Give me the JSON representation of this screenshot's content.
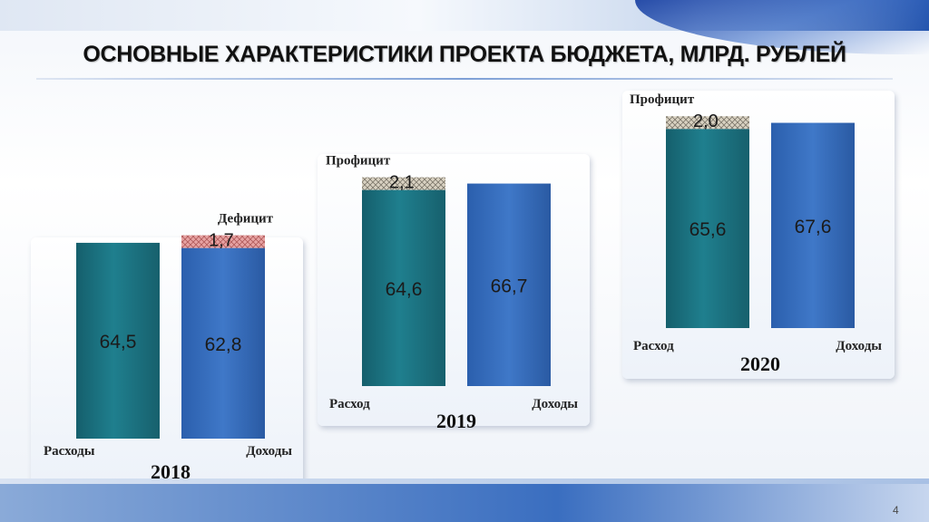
{
  "slide": {
    "title": "ОСНОВНЫЕ ХАРАКТЕРИСТИКИ ПРОЕКТА БЮДЖЕТА, МЛРД. РУБЛЕЙ",
    "page_number": "4"
  },
  "colors": {
    "expense_bar": "#1f7f8e",
    "income_bar": "#3f78c8",
    "deficit_hatch": "#e7a3a3",
    "surplus_hatch": "#d9d2c2"
  },
  "chart_data": [
    {
      "type": "bar",
      "year": "2018",
      "categories": [
        "Расходы",
        "Доходы"
      ],
      "values": [
        64.5,
        62.8
      ],
      "value_labels": [
        "64,5",
        "62,8"
      ],
      "balance": {
        "kind": "deficit",
        "label": "Дефицит",
        "value": 1.7,
        "value_label": "1,7",
        "stacked_on": "Доходы"
      }
    },
    {
      "type": "bar",
      "year": "2019",
      "categories": [
        "Расход",
        "Доходы"
      ],
      "values": [
        64.6,
        66.7
      ],
      "value_labels": [
        "64,6",
        "66,7"
      ],
      "balance": {
        "kind": "surplus",
        "label": "Профицит",
        "value": 2.1,
        "value_label": "2,1",
        "stacked_on": "Расход"
      }
    },
    {
      "type": "bar",
      "year": "2020",
      "categories": [
        "Расход",
        "Доходы"
      ],
      "values": [
        65.6,
        67.6
      ],
      "value_labels": [
        "65,6",
        "67,6"
      ],
      "balance": {
        "kind": "surplus",
        "label": "Профицит",
        "value": 2.0,
        "value_label": "2,0",
        "stacked_on": "Расход"
      }
    }
  ]
}
